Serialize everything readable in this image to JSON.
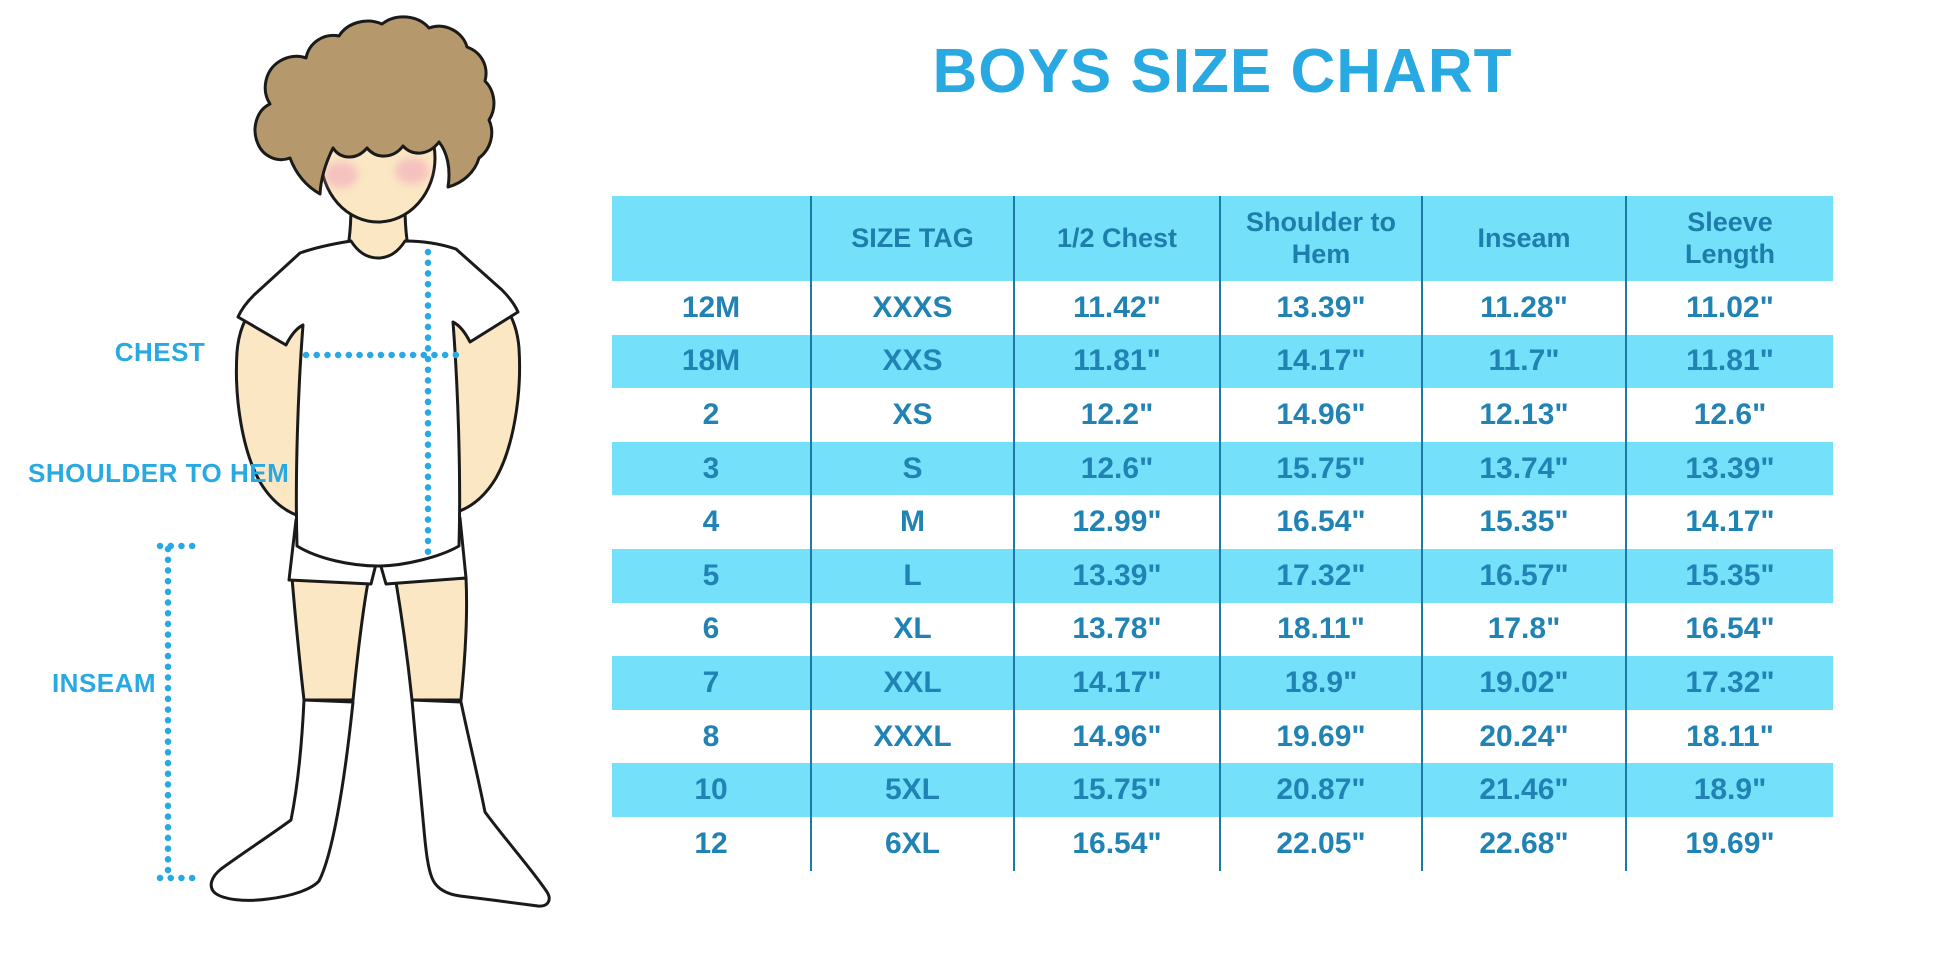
{
  "page": {
    "title": "BOYS SIZE CHART"
  },
  "colors": {
    "accent": "#29a9e1",
    "stripe": "#74e0fa",
    "table_text": "#2183b4",
    "header_text": "#1d7dab",
    "line": "#1c7aa6",
    "hair": "#b5986b",
    "skin": "#fbe7c3",
    "blush": "#f2a9be",
    "outline": "#1a1a1a"
  },
  "figure": {
    "labels": {
      "chest": "CHEST",
      "shoulder_to_hem": "SHOULDER TO HEM",
      "inseam": "INSEAM"
    }
  },
  "chart_data": {
    "type": "table",
    "title": "BOYS SIZE CHART",
    "columns": [
      "",
      "SIZE TAG",
      "1/2 Chest",
      "Shoulder to Hem",
      "Inseam",
      "Sleeve Length"
    ],
    "rows": [
      [
        "12M",
        "XXXS",
        "11.42\"",
        "13.39\"",
        "11.28\"",
        "11.02\""
      ],
      [
        "18M",
        "XXS",
        "11.81\"",
        "14.17\"",
        "11.7\"",
        "11.81\""
      ],
      [
        "2",
        "XS",
        "12.2\"",
        "14.96\"",
        "12.13\"",
        "12.6\""
      ],
      [
        "3",
        "S",
        "12.6\"",
        "15.75\"",
        "13.74\"",
        "13.39\""
      ],
      [
        "4",
        "M",
        "12.99\"",
        "16.54\"",
        "15.35\"",
        "14.17\""
      ],
      [
        "5",
        "L",
        "13.39\"",
        "17.32\"",
        "16.57\"",
        "15.35\""
      ],
      [
        "6",
        "XL",
        "13.78\"",
        "18.11\"",
        "17.8\"",
        "16.54\""
      ],
      [
        "7",
        "XXL",
        "14.17\"",
        "18.9\"",
        "19.02\"",
        "17.32\""
      ],
      [
        "8",
        "XXXL",
        "14.96\"",
        "19.69\"",
        "20.24\"",
        "18.11\""
      ],
      [
        "10",
        "5XL",
        "15.75\"",
        "20.87\"",
        "21.46\"",
        "18.9\""
      ],
      [
        "12",
        "6XL",
        "16.54\"",
        "22.05\"",
        "22.68\"",
        "19.69\""
      ]
    ]
  }
}
